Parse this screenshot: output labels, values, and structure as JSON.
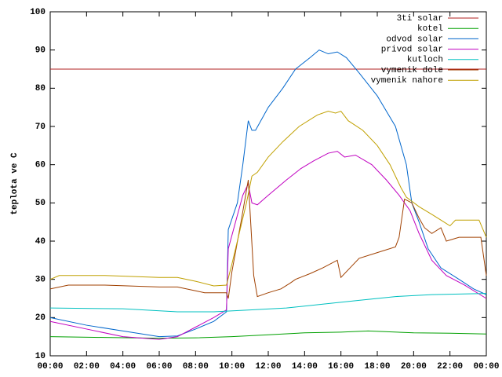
{
  "chart_data": {
    "type": "line",
    "ylabel": "teplota ve C",
    "xlim": [
      0,
      24
    ],
    "xticks": [
      {
        "value": 0,
        "label": "00:00"
      },
      {
        "value": 2,
        "label": "02:00"
      },
      {
        "value": 4,
        "label": "04:00"
      },
      {
        "value": 6,
        "label": "06:00"
      },
      {
        "value": 8,
        "label": "08:00"
      },
      {
        "value": 10,
        "label": "10:00"
      },
      {
        "value": 12,
        "label": "12:00"
      },
      {
        "value": 14,
        "label": "14:00"
      },
      {
        "value": 16,
        "label": "16:00"
      },
      {
        "value": 18,
        "label": "18:00"
      },
      {
        "value": 20,
        "label": "20:00"
      },
      {
        "value": 22,
        "label": "22:00"
      },
      {
        "value": 24,
        "label": "00:00"
      }
    ],
    "ylim": [
      10,
      100
    ],
    "yticks": [
      10,
      20,
      30,
      40,
      50,
      60,
      70,
      80,
      90,
      100
    ],
    "legend": "top-right",
    "series": [
      {
        "name": "3ti solar",
        "color": "#b02020",
        "x": [
          0,
          24
        ],
        "values": [
          85,
          85
        ]
      },
      {
        "name": "kotel",
        "color": "#00a000",
        "x": [
          0,
          3,
          6,
          8,
          10,
          12,
          14,
          16,
          17.5,
          20,
          22,
          24
        ],
        "values": [
          15,
          14.8,
          14.6,
          14.7,
          15,
          15.5,
          16,
          16.2,
          16.5,
          16,
          15.9,
          15.7
        ]
      },
      {
        "name": "odvod solar",
        "color": "#0066cc",
        "x": [
          0,
          2,
          4,
          6,
          7,
          8,
          9,
          9.7,
          9.8,
          10.3,
          10.6,
          10.9,
          11.1,
          11.3,
          12,
          12.8,
          13.5,
          14.3,
          14.8,
          15.3,
          15.8,
          16.3,
          17,
          18,
          19,
          19.6,
          19.9,
          20.3,
          20.8,
          21.5,
          22.5,
          23.3,
          24
        ],
        "values": [
          20,
          18,
          16.5,
          15,
          15.2,
          17,
          19,
          21.5,
          43,
          50,
          60,
          71.5,
          69,
          69,
          75,
          80,
          85,
          88,
          90,
          89,
          89.5,
          88,
          84,
          78,
          70,
          60,
          50,
          45,
          38,
          33,
          30,
          27.5,
          26
        ]
      },
      {
        "name": "privod solar",
        "color": "#c000c0",
        "x": [
          0,
          2,
          4,
          6,
          7,
          8,
          9,
          9.7,
          9.8,
          10.2,
          10.6,
          10.9,
          11.1,
          11.4,
          12,
          13,
          13.8,
          14.5,
          15.3,
          15.8,
          16.2,
          16.8,
          17.7,
          18.5,
          19.2,
          19.8,
          20.3,
          21,
          21.8,
          22.8,
          24
        ],
        "values": [
          19,
          17,
          15,
          14.3,
          15,
          17.5,
          20,
          22,
          38,
          45,
          52,
          55,
          50,
          49.5,
          52,
          56,
          59,
          61,
          63,
          63.5,
          62,
          62.5,
          60,
          56,
          52,
          48,
          42,
          35,
          31,
          28.5,
          25
        ]
      },
      {
        "name": "kutloch",
        "color": "#00c0c0",
        "x": [
          0,
          4,
          7,
          9,
          11,
          13,
          15,
          17,
          19,
          21,
          24
        ],
        "values": [
          22.5,
          22.3,
          21.5,
          21.5,
          22,
          22.5,
          23.5,
          24.5,
          25.5,
          26,
          26.3
        ]
      },
      {
        "name": "vymenik dole",
        "color": "#a04000",
        "x": [
          0,
          1,
          3,
          6,
          7,
          8,
          8.5,
          9.7,
          9.8,
          10,
          10.5,
          10.9,
          11.2,
          11.4,
          12,
          12.7,
          13.2,
          13.5,
          14.3,
          15,
          15.8,
          16,
          16.5,
          17,
          18,
          19,
          19.2,
          19.5,
          19.9,
          20.3,
          20.6,
          21,
          21.5,
          21.8,
          22.5,
          23.7,
          24
        ],
        "values": [
          27.5,
          28.5,
          28.5,
          28,
          28,
          27,
          26.5,
          26.5,
          25,
          32,
          45,
          56,
          31,
          25.5,
          26.5,
          27.5,
          29,
          30,
          31.5,
          33,
          35,
          30.5,
          33,
          35.5,
          37,
          38.5,
          41,
          51,
          50,
          46,
          43.5,
          42,
          43.5,
          40,
          41,
          41,
          31
        ]
      },
      {
        "name": "vymenik nahore",
        "color": "#c0a000",
        "x": [
          0,
          0.5,
          3,
          6,
          7,
          8,
          9,
          9.7,
          10,
          10.3,
          10.8,
          11.1,
          11.4,
          12,
          12.8,
          13.7,
          14.7,
          15.3,
          15.7,
          16,
          16.4,
          17.2,
          18,
          18.7,
          19.3,
          19.6,
          20.3,
          21,
          21.5,
          22,
          22.3,
          23.6,
          24
        ],
        "values": [
          30,
          31,
          31,
          30.5,
          30.5,
          29.5,
          28.3,
          28.5,
          34,
          40,
          50,
          57,
          58,
          62,
          66,
          70,
          73,
          74,
          73.5,
          74,
          71.5,
          69,
          65,
          60,
          54,
          51.5,
          49,
          47,
          45.5,
          44,
          45.5,
          45.5,
          41
        ]
      }
    ]
  }
}
